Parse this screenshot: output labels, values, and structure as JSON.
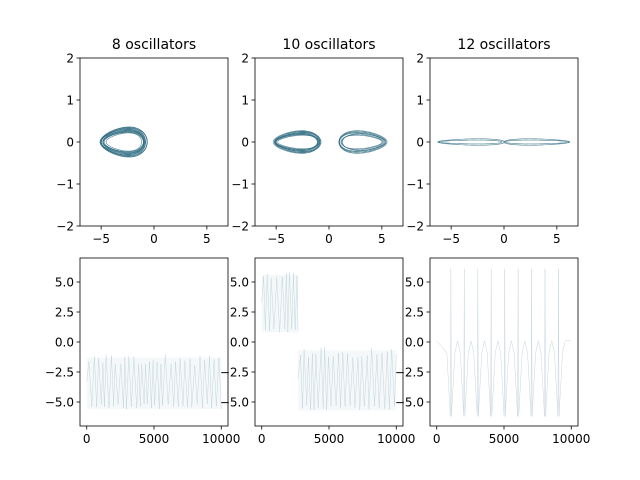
{
  "chart_data": [
    {
      "type": "line",
      "panel": "phase",
      "title": "8 oscillators",
      "xlim": [
        -7,
        7
      ],
      "ylim": [
        -2,
        2
      ],
      "xticks": [
        -5,
        0,
        5
      ],
      "xtick_labels": [
        "−5",
        "0",
        "5"
      ],
      "yticks": [
        -2,
        -1,
        0,
        1,
        2
      ],
      "ytick_labels": [
        "−2",
        "−1",
        "0",
        "1",
        "2"
      ],
      "color": "#2e6b80",
      "series": [
        {
          "kind": "orbit",
          "center_x": -2.9,
          "center_y": 0,
          "width": 4.4,
          "height": 0.56,
          "loops": 14,
          "spread": 0.5
        }
      ]
    },
    {
      "type": "line",
      "panel": "phase",
      "title": "10 oscillators",
      "xlim": [
        -7,
        7
      ],
      "ylim": [
        -2,
        2
      ],
      "xticks": [
        -5,
        0,
        5
      ],
      "xtick_labels": [
        "−5",
        "0",
        "5"
      ],
      "yticks": [
        -2,
        -1,
        0,
        1,
        2
      ],
      "ytick_labels": [
        "−2",
        "−1",
        "0",
        "1",
        "2"
      ],
      "color": "#2e6b80",
      "series": [
        {
          "kind": "orbit",
          "center_x": -3.0,
          "center_y": 0,
          "width": 4.4,
          "height": 0.42,
          "loops": 10,
          "spread": 0.35
        },
        {
          "kind": "orbit",
          "center_x": 3.2,
          "center_y": 0,
          "width": 4.6,
          "height": 0.42,
          "loops": 7,
          "spread": 0.5
        }
      ]
    },
    {
      "type": "line",
      "panel": "phase",
      "title": "12 oscillators",
      "xlim": [
        -7,
        7
      ],
      "ylim": [
        -2,
        2
      ],
      "xticks": [
        -5,
        0,
        5
      ],
      "xtick_labels": [
        "−5",
        "0",
        "5"
      ],
      "yticks": [
        -2,
        -1,
        0,
        1,
        2
      ],
      "ytick_labels": [
        "−2",
        "−1",
        "0",
        "1",
        "2"
      ],
      "color": "#2e6b80",
      "series": [
        {
          "kind": "orbit",
          "center_x": -3.1,
          "center_y": 0,
          "width": 6.2,
          "height": 0.12,
          "loops": 2,
          "spread": 0.1
        },
        {
          "kind": "orbit",
          "center_x": 3.1,
          "center_y": 0,
          "width": 6.2,
          "height": 0.12,
          "loops": 2,
          "spread": 0.1
        }
      ]
    },
    {
      "type": "line",
      "panel": "time",
      "xlim": [
        -500,
        10500
      ],
      "ylim": [
        -7,
        7
      ],
      "xticks": [
        0,
        5000,
        10000
      ],
      "xtick_labels": [
        "0",
        "5000",
        "10000"
      ],
      "yticks": [
        -5,
        -2.5,
        0,
        2.5,
        5
      ],
      "ytick_labels": [
        "−5.0",
        "−2.5",
        "0.0",
        "2.5",
        "5.0"
      ],
      "color": "#a9c4cf",
      "series": [
        {
          "kind": "band",
          "x_start": 0,
          "x_end": 10000,
          "low": -5.6,
          "high": -1.0,
          "wiggle": 0.3
        }
      ]
    },
    {
      "type": "line",
      "panel": "time",
      "xlim": [
        -500,
        10500
      ],
      "ylim": [
        -7,
        7
      ],
      "xticks": [
        0,
        5000,
        10000
      ],
      "xtick_labels": [
        "0",
        "5000",
        "10000"
      ],
      "yticks": [
        -5,
        -2.5,
        0,
        2.5,
        5
      ],
      "ytick_labels": [
        "−5.0",
        "−2.5",
        "0.0",
        "2.5",
        "5.0"
      ],
      "color": "#a9c4cf",
      "series": [
        {
          "kind": "band",
          "x_start": 0,
          "x_end": 2700,
          "low": 0.8,
          "high": 5.8,
          "wiggle": 0.2
        },
        {
          "kind": "band",
          "x_start": 2700,
          "x_end": 10000,
          "low": -5.7,
          "high": -0.4,
          "wiggle": 0.3
        }
      ]
    },
    {
      "type": "line",
      "panel": "time",
      "xlim": [
        -500,
        10500
      ],
      "ylim": [
        -7,
        7
      ],
      "xticks": [
        0,
        5000,
        10000
      ],
      "xtick_labels": [
        "0",
        "5000",
        "10000"
      ],
      "yticks": [
        -5,
        -2.5,
        0,
        2.5,
        5
      ],
      "ytick_labels": [
        "−5.0",
        "−2.5",
        "0.0",
        "2.5",
        "5.0"
      ],
      "color": "#c8d6dc",
      "series": [
        {
          "kind": "spikes",
          "x_first": 1050,
          "period": 1000,
          "count": 9,
          "high": 6.1,
          "low": -6.2,
          "base": 0.1
        }
      ]
    }
  ]
}
